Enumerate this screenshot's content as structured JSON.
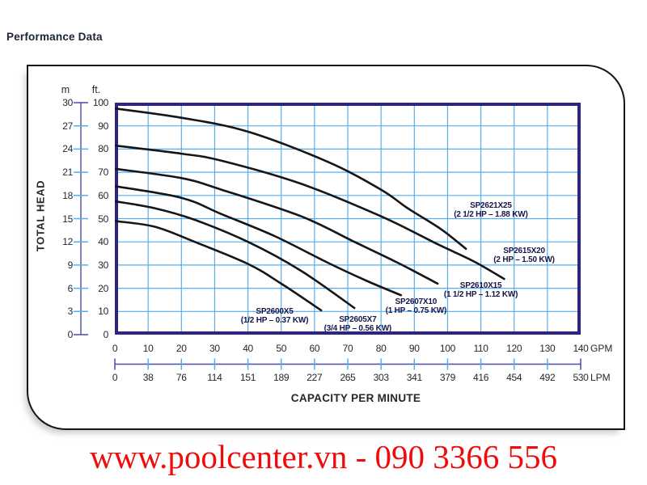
{
  "page": {
    "title": "Performance Data",
    "watermark": "www.poolcenter.vn - 090 3366 556",
    "watermark_color": "#ee0c0c"
  },
  "chart_data": {
    "type": "line",
    "title": "Performance Data",
    "x_axis": {
      "label": "CAPACITY PER MINUTE",
      "primary": {
        "unit": "GPM",
        "range": [
          0,
          140
        ],
        "ticks": [
          0,
          10,
          20,
          30,
          40,
          50,
          60,
          70,
          80,
          90,
          100,
          110,
          120,
          130,
          140
        ]
      },
      "secondary": {
        "unit": "LPM",
        "ticks": [
          0,
          38,
          76,
          114,
          151,
          189,
          227,
          265,
          303,
          341,
          379,
          416,
          454,
          492,
          530
        ]
      }
    },
    "y_axis": {
      "label": "TOTAL HEAD",
      "primary": {
        "unit": "ft.",
        "range": [
          0,
          100
        ],
        "ticks": [
          100,
          90,
          80,
          70,
          60,
          50,
          40,
          30,
          20,
          10,
          0
        ]
      },
      "secondary": {
        "unit": "m",
        "ticks": [
          30,
          27,
          24,
          21,
          18,
          15,
          12,
          9,
          6,
          3,
          0
        ]
      }
    },
    "grid": {
      "on": true,
      "x_step_gpm": 10,
      "y_step_ft": 10
    },
    "series": [
      {
        "name": "SP2600X5",
        "power": "(1/2 HP – 0.37 KW)",
        "points": [
          [
            0,
            49
          ],
          [
            12,
            46.5
          ],
          [
            24,
            40
          ],
          [
            40,
            30.5
          ],
          [
            50,
            22
          ],
          [
            62,
            10.5
          ]
        ],
        "label_at": [
          48,
          8
        ]
      },
      {
        "name": "SP2605X7",
        "power": "(3/4 HP – 0.56 KW)",
        "points": [
          [
            0,
            57.5
          ],
          [
            12,
            54.5
          ],
          [
            24,
            49.5
          ],
          [
            40,
            40
          ],
          [
            56,
            27.5
          ],
          [
            72,
            11.5
          ]
        ],
        "label_at": [
          73,
          4.5
        ]
      },
      {
        "name": "SP2607X10",
        "power": "(1 HP – 0.75 KW)",
        "points": [
          [
            0,
            64
          ],
          [
            20,
            59
          ],
          [
            32,
            52
          ],
          [
            48,
            42.5
          ],
          [
            64,
            31
          ],
          [
            76,
            23
          ],
          [
            86,
            17
          ]
        ],
        "label_at": [
          90.5,
          12.3
        ]
      },
      {
        "name": "SP2610X15",
        "power": "(1 1/2 HP – 1.12 KW)",
        "points": [
          [
            0,
            71.5
          ],
          [
            20,
            67.5
          ],
          [
            32,
            62.5
          ],
          [
            56,
            51
          ],
          [
            72,
            40
          ],
          [
            85,
            31
          ],
          [
            97,
            22
          ]
        ],
        "label_at": [
          110,
          19
        ]
      },
      {
        "name": "SP2615X20",
        "power": "(2 HP – 1.50 KW)",
        "points": [
          [
            0,
            81.5
          ],
          [
            20,
            78
          ],
          [
            32,
            75
          ],
          [
            56,
            65
          ],
          [
            80,
            51
          ],
          [
            97,
            39
          ],
          [
            108,
            31.5
          ],
          [
            117,
            24
          ]
        ],
        "label_at": [
          123,
          34
        ]
      },
      {
        "name": "SP2621X25",
        "power": "(2 1/2 HP – 1.88 KW)",
        "points": [
          [
            0,
            97.5
          ],
          [
            20,
            93.5
          ],
          [
            40,
            87.5
          ],
          [
            64,
            74.5
          ],
          [
            80,
            62.5
          ],
          [
            88,
            54.5
          ],
          [
            98,
            45.5
          ],
          [
            105.5,
            37
          ]
        ],
        "label_at": [
          113,
          53.5
        ]
      }
    ],
    "colors": {
      "curve": "#161616",
      "plot_border": "#2e2580",
      "grid": "#54aeee",
      "axis_line": "#4a4aaa",
      "tick": "#54aeee"
    }
  }
}
